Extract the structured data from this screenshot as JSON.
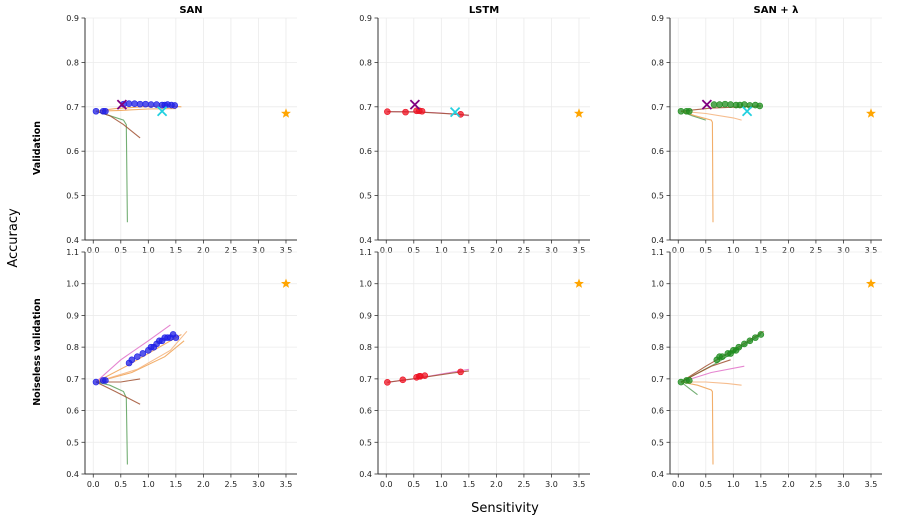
{
  "figure": {
    "xlabel": "Sensitivity",
    "ylabel": "Accuracy",
    "row_labels": [
      "Validation",
      "Noiseless validation"
    ],
    "col_titles": [
      "SAN",
      "LSTM",
      "SAN + λ"
    ]
  },
  "colors": {
    "san_points": "#1f1fe6",
    "lstm_points": "#ee1122",
    "sanl_points": "#1e8c1e",
    "star": "#ffa500",
    "x_purple": "#800080",
    "x_cyan": "#22d0e0",
    "line_green": "#5aa05a",
    "line_orange": "#f0a050",
    "line_brown": "#a05030",
    "line_pink": "#e070c8",
    "line_peach": "#f5b27a"
  },
  "chart_data": [
    {
      "type": "scatter",
      "panel": "SAN / Validation",
      "title": "SAN",
      "row": 0,
      "col": 0,
      "xlim": [
        -0.15,
        3.7
      ],
      "ylim": [
        0.4,
        0.9
      ],
      "xticks": [
        "0.0",
        "0.5",
        "1.0",
        "1.5",
        "2.0",
        "2.5",
        "3.0",
        "3.5"
      ],
      "yticks": [
        "0.4",
        "0.5",
        "0.6",
        "0.7",
        "0.8",
        "0.9"
      ],
      "points": {
        "color": "san_points",
        "x": [
          0.05,
          0.18,
          0.22,
          0.55,
          0.65,
          0.75,
          0.85,
          0.95,
          1.05,
          1.15,
          1.25,
          1.3,
          1.35,
          1.42,
          1.48
        ],
        "y": [
          0.69,
          0.69,
          0.69,
          0.706,
          0.707,
          0.707,
          0.706,
          0.706,
          0.705,
          0.705,
          0.704,
          0.704,
          0.705,
          0.704,
          0.703
        ]
      },
      "trajectories": [
        {
          "color": "line_green",
          "x": [
            0.05,
            0.3,
            0.55,
            0.6,
            0.62
          ],
          "y": [
            0.69,
            0.68,
            0.67,
            0.66,
            0.44
          ]
        },
        {
          "color": "line_brown",
          "x": [
            0.05,
            0.3,
            0.55,
            0.85
          ],
          "y": [
            0.69,
            0.68,
            0.66,
            0.63
          ]
        },
        {
          "color": "line_orange",
          "x": [
            0.05,
            0.4,
            0.9,
            1.3,
            1.6
          ],
          "y": [
            0.69,
            0.696,
            0.7,
            0.702,
            0.7
          ]
        },
        {
          "color": "line_orange",
          "x": [
            0.05,
            0.5,
            1.0,
            1.5
          ],
          "y": [
            0.69,
            0.692,
            0.695,
            0.696
          ]
        }
      ],
      "markers": [
        {
          "symbol": "x",
          "color": "x_purple",
          "x": 0.52,
          "y": 0.705
        },
        {
          "symbol": "x",
          "color": "x_cyan",
          "x": 1.25,
          "y": 0.69
        },
        {
          "symbol": "star",
          "color": "star",
          "x": 3.5,
          "y": 0.685
        }
      ]
    },
    {
      "type": "scatter",
      "panel": "LSTM / Validation",
      "title": "LSTM",
      "row": 0,
      "col": 1,
      "xlim": [
        -0.15,
        3.7
      ],
      "ylim": [
        0.4,
        0.9
      ],
      "xticks": [
        "0.0",
        "0.5",
        "1.0",
        "1.5",
        "2.0",
        "2.5",
        "3.0",
        "3.5"
      ],
      "yticks": [
        "0.4",
        "0.5",
        "0.6",
        "0.7",
        "0.8",
        "0.9"
      ],
      "points": {
        "color": "lstm_points",
        "x": [
          0.02,
          0.35,
          0.55,
          0.6,
          0.65,
          1.35
        ],
        "y": [
          0.689,
          0.688,
          0.691,
          0.691,
          0.69,
          0.683
        ]
      },
      "trajectories": [
        {
          "color": "line_pink",
          "x": [
            0.02,
            0.5,
            1.0,
            1.5
          ],
          "y": [
            0.689,
            0.689,
            0.686,
            0.68
          ]
        },
        {
          "color": "line_brown",
          "x": [
            0.02,
            0.6,
            1.2,
            1.5
          ],
          "y": [
            0.689,
            0.688,
            0.684,
            0.681
          ]
        }
      ],
      "markers": [
        {
          "symbol": "x",
          "color": "x_purple",
          "x": 0.52,
          "y": 0.705
        },
        {
          "symbol": "x",
          "color": "x_cyan",
          "x": 1.25,
          "y": 0.688
        },
        {
          "symbol": "star",
          "color": "star",
          "x": 3.5,
          "y": 0.685
        }
      ]
    },
    {
      "type": "scatter",
      "panel": "SAN + λ / Validation",
      "title": "SAN + λ",
      "row": 0,
      "col": 2,
      "xlim": [
        -0.15,
        3.7
      ],
      "ylim": [
        0.4,
        0.9
      ],
      "xticks": [
        "0.0",
        "0.5",
        "1.0",
        "1.5",
        "2.0",
        "2.5",
        "3.0",
        "3.5"
      ],
      "yticks": [
        "0.4",
        "0.5",
        "0.6",
        "0.7",
        "0.8",
        "0.9"
      ],
      "points": {
        "color": "sanl_points",
        "x": [
          0.05,
          0.15,
          0.2,
          0.65,
          0.75,
          0.85,
          0.95,
          1.05,
          1.12,
          1.2,
          1.3,
          1.4,
          1.48
        ],
        "y": [
          0.69,
          0.69,
          0.69,
          0.705,
          0.705,
          0.706,
          0.705,
          0.704,
          0.704,
          0.705,
          0.703,
          0.704,
          0.702
        ]
      },
      "trajectories": [
        {
          "color": "line_green",
          "x": [
            0.05,
            0.25,
            0.5
          ],
          "y": [
            0.69,
            0.68,
            0.67
          ]
        },
        {
          "color": "line_orange",
          "x": [
            0.05,
            0.3,
            0.6,
            0.62,
            0.63
          ],
          "y": [
            0.69,
            0.68,
            0.67,
            0.665,
            0.44
          ]
        },
        {
          "color": "line_peach",
          "x": [
            0.05,
            0.5,
            1.0,
            1.15
          ],
          "y": [
            0.69,
            0.685,
            0.675,
            0.67
          ]
        },
        {
          "color": "line_brown",
          "x": [
            0.05,
            0.6,
            1.2,
            1.5
          ],
          "y": [
            0.69,
            0.697,
            0.7,
            0.702
          ]
        }
      ],
      "markers": [
        {
          "symbol": "x",
          "color": "x_purple",
          "x": 0.52,
          "y": 0.705
        },
        {
          "symbol": "x",
          "color": "x_cyan",
          "x": 1.25,
          "y": 0.69
        },
        {
          "symbol": "star",
          "color": "star",
          "x": 3.5,
          "y": 0.685
        }
      ]
    },
    {
      "type": "scatter",
      "panel": "SAN / Noiseless validation",
      "title": "",
      "row": 1,
      "col": 0,
      "xlim": [
        -0.15,
        3.7
      ],
      "ylim": [
        0.4,
        1.1
      ],
      "xticks": [
        "0.0",
        "0.5",
        "1.0",
        "1.5",
        "2.0",
        "2.5",
        "3.0",
        "3.5"
      ],
      "yticks": [
        "0.4",
        "0.5",
        "0.6",
        "0.7",
        "0.8",
        "0.9",
        "1.0",
        "1.1"
      ],
      "points": {
        "color": "san_points",
        "x": [
          0.05,
          0.18,
          0.22,
          0.65,
          0.7,
          0.8,
          0.9,
          1.0,
          1.05,
          1.1,
          1.15,
          1.2,
          1.25,
          1.3,
          1.35,
          1.4,
          1.45,
          1.5
        ],
        "y": [
          0.69,
          0.695,
          0.695,
          0.75,
          0.76,
          0.77,
          0.78,
          0.79,
          0.8,
          0.8,
          0.81,
          0.82,
          0.82,
          0.83,
          0.83,
          0.83,
          0.84,
          0.83
        ]
      },
      "trajectories": [
        {
          "color": "line_green",
          "x": [
            0.05,
            0.3,
            0.55,
            0.6,
            0.62
          ],
          "y": [
            0.69,
            0.68,
            0.66,
            0.64,
            0.43
          ]
        },
        {
          "color": "line_brown",
          "x": [
            0.05,
            0.4,
            0.85
          ],
          "y": [
            0.69,
            0.66,
            0.62
          ]
        },
        {
          "color": "line_pink",
          "x": [
            0.05,
            0.5,
            1.0,
            1.4
          ],
          "y": [
            0.69,
            0.76,
            0.82,
            0.87
          ]
        },
        {
          "color": "line_orange",
          "x": [
            0.05,
            0.6,
            1.1,
            1.6
          ],
          "y": [
            0.69,
            0.74,
            0.79,
            0.84
          ]
        },
        {
          "color": "line_orange",
          "x": [
            0.05,
            0.7,
            1.3,
            1.65
          ],
          "y": [
            0.69,
            0.72,
            0.77,
            0.82
          ]
        },
        {
          "color": "line_peach",
          "x": [
            0.05,
            0.8,
            1.4,
            1.7
          ],
          "y": [
            0.69,
            0.73,
            0.79,
            0.85
          ]
        },
        {
          "color": "line_brown",
          "x": [
            0.05,
            0.5,
            0.85
          ],
          "y": [
            0.69,
            0.69,
            0.7
          ]
        }
      ],
      "markers": [
        {
          "symbol": "star",
          "color": "star",
          "x": 3.5,
          "y": 1.0
        }
      ]
    },
    {
      "type": "scatter",
      "panel": "LSTM / Noiseless validation",
      "title": "",
      "row": 1,
      "col": 1,
      "xlim": [
        -0.15,
        3.7
      ],
      "ylim": [
        0.4,
        1.1
      ],
      "xticks": [
        "0.0",
        "0.5",
        "1.0",
        "1.5",
        "2.0",
        "2.5",
        "3.0",
        "3.5"
      ],
      "yticks": [
        "0.4",
        "0.5",
        "0.6",
        "0.7",
        "0.8",
        "0.9",
        "1.0",
        "1.1"
      ],
      "points": {
        "color": "lstm_points",
        "x": [
          0.02,
          0.3,
          0.55,
          0.6,
          0.62,
          0.7,
          1.35
        ],
        "y": [
          0.689,
          0.697,
          0.705,
          0.708,
          0.708,
          0.71,
          0.722
        ]
      },
      "trajectories": [
        {
          "color": "line_pink",
          "x": [
            0.02,
            0.5,
            1.0,
            1.5
          ],
          "y": [
            0.689,
            0.7,
            0.715,
            0.73
          ]
        },
        {
          "color": "line_brown",
          "x": [
            0.02,
            0.6,
            1.2,
            1.5
          ],
          "y": [
            0.689,
            0.703,
            0.718,
            0.725
          ]
        }
      ],
      "markers": [
        {
          "symbol": "star",
          "color": "star",
          "x": 3.5,
          "y": 1.0
        }
      ]
    },
    {
      "type": "scatter",
      "panel": "SAN + λ / Noiseless validation",
      "title": "",
      "row": 1,
      "col": 2,
      "xlim": [
        -0.15,
        3.7
      ],
      "ylim": [
        0.4,
        1.1
      ],
      "xticks": [
        "0.0",
        "0.5",
        "1.0",
        "1.5",
        "2.0",
        "2.5",
        "3.0",
        "3.5"
      ],
      "yticks": [
        "0.4",
        "0.5",
        "0.6",
        "0.7",
        "0.8",
        "0.9",
        "1.0",
        "1.1"
      ],
      "points": {
        "color": "sanl_points",
        "x": [
          0.05,
          0.15,
          0.2,
          0.7,
          0.75,
          0.8,
          0.9,
          0.95,
          1.0,
          1.05,
          1.1,
          1.2,
          1.3,
          1.4,
          1.5
        ],
        "y": [
          0.69,
          0.695,
          0.695,
          0.76,
          0.77,
          0.77,
          0.78,
          0.78,
          0.79,
          0.79,
          0.8,
          0.81,
          0.82,
          0.83,
          0.84
        ]
      },
      "trajectories": [
        {
          "color": "line_green",
          "x": [
            0.05,
            0.2,
            0.35
          ],
          "y": [
            0.69,
            0.67,
            0.65
          ]
        },
        {
          "color": "line_orange",
          "x": [
            0.05,
            0.35,
            0.6,
            0.62,
            0.63
          ],
          "y": [
            0.69,
            0.68,
            0.665,
            0.66,
            0.43
          ]
        },
        {
          "color": "line_peach",
          "x": [
            0.05,
            0.5,
            0.9,
            1.15
          ],
          "y": [
            0.69,
            0.69,
            0.685,
            0.68
          ]
        },
        {
          "color": "line_brown",
          "x": [
            0.05,
            0.5,
            1.0,
            1.55
          ],
          "y": [
            0.69,
            0.74,
            0.79,
            0.85
          ]
        },
        {
          "color": "line_pink",
          "x": [
            0.05,
            0.6,
            1.2
          ],
          "y": [
            0.69,
            0.72,
            0.74
          ]
        },
        {
          "color": "line_green",
          "x": [
            0.05,
            0.7,
            1.5
          ],
          "y": [
            0.69,
            0.75,
            0.84
          ]
        },
        {
          "color": "line_brown",
          "x": [
            0.05,
            0.6,
            0.95
          ],
          "y": [
            0.69,
            0.74,
            0.76
          ]
        }
      ],
      "markers": [
        {
          "symbol": "star",
          "color": "star",
          "x": 3.5,
          "y": 1.0
        }
      ]
    }
  ]
}
